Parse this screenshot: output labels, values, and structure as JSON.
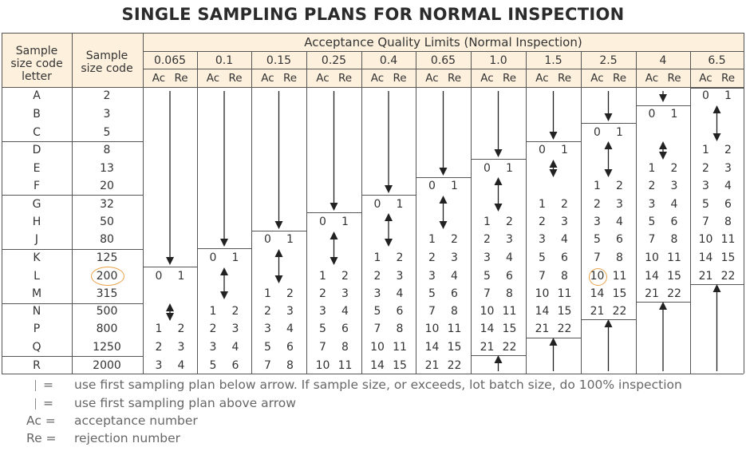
{
  "title": "SINGLE SAMPLING PLANS FOR NORMAL INSPECTION",
  "headers": {
    "code_letter_lines": [
      "Sample",
      "size code",
      "letter"
    ],
    "sample_size_lines": [
      "Sample",
      "size code"
    ],
    "aql_title": "Acceptance Quality Limits (Normal Inspection)",
    "ac": "Ac",
    "re": "Re"
  },
  "aql_levels": [
    "0.065",
    "0.1",
    "0.15",
    "0.25",
    "0.4",
    "0.65",
    "1.0",
    "1.5",
    "2.5",
    "4",
    "6.5"
  ],
  "rows": [
    {
      "letter": "A",
      "size": "2"
    },
    {
      "letter": "B",
      "size": "3"
    },
    {
      "letter": "C",
      "size": "5"
    },
    {
      "letter": "D",
      "size": "8"
    },
    {
      "letter": "E",
      "size": "13"
    },
    {
      "letter": "F",
      "size": "20"
    },
    {
      "letter": "G",
      "size": "32"
    },
    {
      "letter": "H",
      "size": "50"
    },
    {
      "letter": "J",
      "size": "80"
    },
    {
      "letter": "K",
      "size": "125"
    },
    {
      "letter": "L",
      "size": "200"
    },
    {
      "letter": "M",
      "size": "315"
    },
    {
      "letter": "N",
      "size": "500"
    },
    {
      "letter": "P",
      "size": "800"
    },
    {
      "letter": "Q",
      "size": "1250"
    },
    {
      "letter": "R",
      "size": "2000"
    }
  ],
  "plans": [
    {
      "col": 0,
      "start_row": 10,
      "pairs": [
        [
          "0",
          "1"
        ]
      ],
      "gap_rows": [
        11
      ],
      "then_rows": [
        13,
        14,
        15
      ],
      "then_pairs": [
        [
          "1",
          "2"
        ],
        [
          "2",
          "3"
        ],
        [
          "3",
          "4"
        ]
      ]
    },
    {
      "col": 1,
      "start_row": 9,
      "pairs": [
        [
          "0",
          "1"
        ]
      ],
      "then_rows": [
        12,
        13,
        14,
        15
      ],
      "then_pairs": [
        [
          "1",
          "2"
        ],
        [
          "2",
          "3"
        ],
        [
          "3",
          "4"
        ],
        [
          "5",
          "6"
        ]
      ]
    },
    {
      "col": 2,
      "start_row": 8,
      "pairs": [
        [
          "0",
          "1"
        ]
      ],
      "then_rows": [
        11,
        12,
        13,
        14,
        15
      ],
      "then_pairs": [
        [
          "1",
          "2"
        ],
        [
          "2",
          "3"
        ],
        [
          "3",
          "4"
        ],
        [
          "5",
          "6"
        ],
        [
          "7",
          "8"
        ]
      ]
    },
    {
      "col": 3,
      "start_row": 7,
      "pairs": [
        [
          "0",
          "1"
        ]
      ],
      "then_rows": [
        10,
        11,
        12,
        13,
        14,
        15
      ],
      "then_pairs": [
        [
          "1",
          "2"
        ],
        [
          "2",
          "3"
        ],
        [
          "3",
          "4"
        ],
        [
          "5",
          "6"
        ],
        [
          "7",
          "8"
        ],
        [
          "10",
          "11"
        ]
      ]
    },
    {
      "col": 4,
      "start_row": 6,
      "pairs": [
        [
          "0",
          "1"
        ]
      ],
      "then_rows": [
        9,
        10,
        11,
        12,
        13,
        14,
        15
      ],
      "then_pairs": [
        [
          "1",
          "2"
        ],
        [
          "2",
          "3"
        ],
        [
          "3",
          "4"
        ],
        [
          "5",
          "6"
        ],
        [
          "7",
          "8"
        ],
        [
          "10",
          "11"
        ],
        [
          "14",
          "15"
        ]
      ]
    },
    {
      "col": 5,
      "start_row": 5,
      "pairs": [
        [
          "0",
          "1"
        ]
      ],
      "then_rows": [
        8,
        9,
        10,
        11,
        12,
        13,
        14,
        15
      ],
      "then_pairs": [
        [
          "1",
          "2"
        ],
        [
          "2",
          "3"
        ],
        [
          "3",
          "4"
        ],
        [
          "5",
          "6"
        ],
        [
          "7",
          "8"
        ],
        [
          "10",
          "11"
        ],
        [
          "14",
          "15"
        ],
        [
          "21",
          "22"
        ]
      ]
    },
    {
      "col": 6,
      "start_row": 4,
      "pairs": [
        [
          "0",
          "1"
        ]
      ],
      "then_rows": [
        7,
        8,
        9,
        10,
        11,
        12,
        13,
        14
      ],
      "then_pairs": [
        [
          "1",
          "2"
        ],
        [
          "2",
          "3"
        ],
        [
          "3",
          "4"
        ],
        [
          "5",
          "6"
        ],
        [
          "7",
          "8"
        ],
        [
          "10",
          "11"
        ],
        [
          "14",
          "15"
        ],
        [
          "21",
          "22"
        ]
      ]
    },
    {
      "col": 7,
      "start_row": 3,
      "pairs": [
        [
          "0",
          "1"
        ]
      ],
      "then_rows": [
        6,
        7,
        8,
        9,
        10,
        11,
        12,
        13
      ],
      "then_pairs": [
        [
          "1",
          "2"
        ],
        [
          "2",
          "3"
        ],
        [
          "3",
          "4"
        ],
        [
          "5",
          "6"
        ],
        [
          "7",
          "8"
        ],
        [
          "10",
          "11"
        ],
        [
          "14",
          "15"
        ],
        [
          "21",
          "22"
        ]
      ]
    },
    {
      "col": 8,
      "start_row": 2,
      "pairs": [
        [
          "0",
          "1"
        ]
      ],
      "then_rows": [
        5,
        6,
        7,
        8,
        9,
        10,
        11,
        12
      ],
      "then_pairs": [
        [
          "1",
          "2"
        ],
        [
          "2",
          "3"
        ],
        [
          "3",
          "4"
        ],
        [
          "5",
          "6"
        ],
        [
          "7",
          "8"
        ],
        [
          "10",
          "11"
        ],
        [
          "14",
          "15"
        ],
        [
          "21",
          "22"
        ]
      ]
    },
    {
      "col": 9,
      "start_row": 1,
      "pairs": [
        [
          "0",
          "1"
        ]
      ],
      "then_rows": [
        4,
        5,
        6,
        7,
        8,
        9,
        10,
        11
      ],
      "then_pairs": [
        [
          "1",
          "2"
        ],
        [
          "2",
          "3"
        ],
        [
          "3",
          "4"
        ],
        [
          "5",
          "6"
        ],
        [
          "7",
          "8"
        ],
        [
          "10",
          "11"
        ],
        [
          "14",
          "15"
        ],
        [
          "21",
          "22"
        ]
      ]
    },
    {
      "col": 10,
      "start_row": 0,
      "pairs": [
        [
          "0",
          "1"
        ]
      ],
      "then_rows": [
        3,
        4,
        5,
        6,
        7,
        8,
        9,
        10
      ],
      "then_pairs": [
        [
          "1",
          "2"
        ],
        [
          "2",
          "3"
        ],
        [
          "3",
          "4"
        ],
        [
          "5",
          "6"
        ],
        [
          "7",
          "8"
        ],
        [
          "10",
          "11"
        ],
        [
          "14",
          "15"
        ],
        [
          "21",
          "22"
        ]
      ]
    }
  ],
  "highlights": {
    "sample_size": "200",
    "ac_value": "10"
  },
  "legend": [
    {
      "symbol": "=",
      "text": "use first sampling plan below arrow. If sample size, or exceeds, lot batch size, do 100% inspection"
    },
    {
      "symbol": "=",
      "text": "use first sampling plan above arrow"
    },
    {
      "symbol": "Ac =",
      "text": "acceptance number"
    },
    {
      "symbol": "Re =",
      "text": "rejection number"
    }
  ]
}
